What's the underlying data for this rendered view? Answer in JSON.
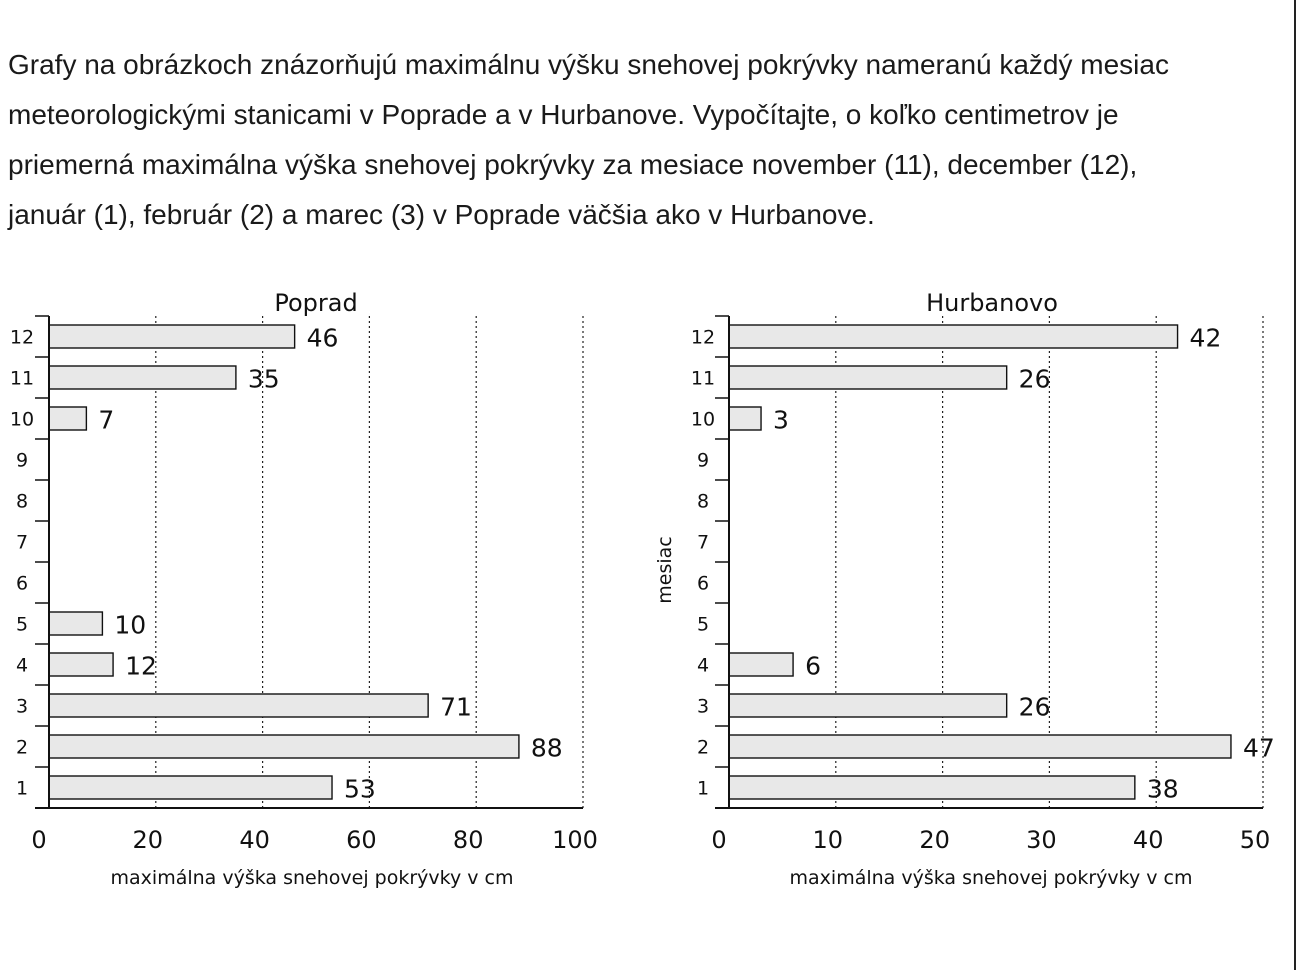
{
  "question": {
    "lines": [
      "Grafy na obrázkoch znázorňujú maximálnu výšku snehovej pokrývky nameranú každý mesiac",
      "meteorologickými stanicami v Poprade a v Hurbanove. Vypočítajte, o koľko centimetrov je",
      "priemerná maximálna výška snehovej pokrývky za mesiace november (11), december (12),",
      "január (1), február (2) a marec (3) v Poprade väčšia ako v Hurbanove."
    ]
  },
  "chart_data": [
    {
      "type": "bar",
      "orientation": "horizontal",
      "title": "Poprad",
      "xlabel": "maximálna výška snehovej pokrývky v cm",
      "ylabel": "",
      "categories": [
        "1",
        "2",
        "3",
        "4",
        "5",
        "6",
        "7",
        "8",
        "9",
        "10",
        "11",
        "12"
      ],
      "values": [
        53,
        88,
        71,
        12,
        10,
        null,
        null,
        null,
        null,
        7,
        35,
        46
      ],
      "xlim": [
        0,
        100
      ],
      "xticks": [
        0,
        20,
        40,
        60,
        80,
        100
      ],
      "grid": "vertical-dotted",
      "bar_color": "#e8e8e8"
    },
    {
      "type": "bar",
      "orientation": "horizontal",
      "title": "Hurbanovo",
      "xlabel": "maximálna výška snehovej pokrývky v cm",
      "ylabel": "mesiac",
      "categories": [
        "1",
        "2",
        "3",
        "4",
        "5",
        "6",
        "7",
        "8",
        "9",
        "10",
        "11",
        "12"
      ],
      "values": [
        38,
        47,
        26,
        6,
        null,
        null,
        null,
        null,
        null,
        3,
        26,
        42
      ],
      "xlim": [
        0,
        50
      ],
      "xticks": [
        0,
        10,
        20,
        30,
        40,
        50
      ],
      "grid": "vertical-dotted",
      "bar_color": "#e8e8e8"
    }
  ]
}
